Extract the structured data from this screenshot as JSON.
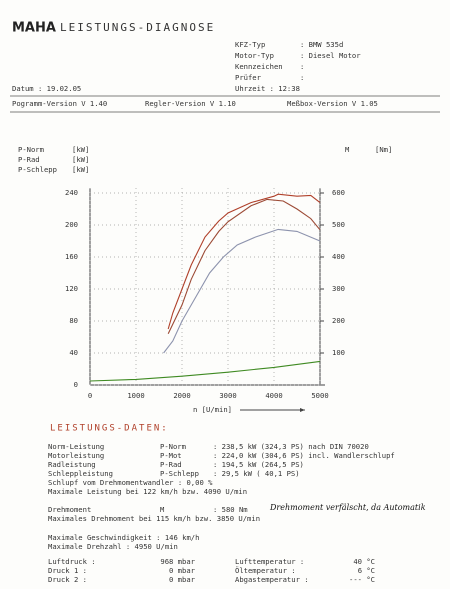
{
  "header": {
    "logo": "MAHA",
    "title": "LEISTUNGS-DIAGNOSE"
  },
  "vehicle": [
    {
      "label": "KFZ-Typ",
      "value": ": BMW 535d"
    },
    {
      "label": "Motor-Typ",
      "value": ": Diesel Motor"
    },
    {
      "label": "Kennzeichen",
      "value": ":"
    },
    {
      "label": "Prüfer",
      "value": ":"
    }
  ],
  "date": "Datum  : 19.02.05",
  "time": "Uhrzeit      : 12:38",
  "versions": [
    "Pogramm-Version V 1.40",
    "Regler-Version V 1.10",
    "Meßbox-Version V 1.05"
  ],
  "chart_data": {
    "type": "line",
    "x_label": "n [U/min]",
    "xlim": [
      0,
      5000
    ],
    "xticks": [
      0,
      1000,
      2000,
      3000,
      4000,
      5000
    ],
    "ylim": [
      0,
      240
    ],
    "yticks": [
      0,
      40,
      80,
      120,
      160,
      200,
      240
    ],
    "y2lim": [
      0,
      600
    ],
    "y2ticks": [
      100,
      200,
      300,
      400,
      500,
      600
    ],
    "grid": true,
    "series": [
      {
        "name": "P-Norm",
        "unit": "[kW]",
        "color": "#b0402a",
        "x": [
          1700,
          1800,
          2000,
          2200,
          2500,
          2800,
          3000,
          3500,
          4000,
          4090,
          4500,
          4800,
          5000
        ],
        "values": [
          70,
          90,
          120,
          150,
          185,
          205,
          215,
          228,
          236,
          238.5,
          236,
          237,
          228
        ]
      },
      {
        "name": "P-Rad",
        "unit": "[kW]",
        "color": "#8d93ad",
        "x": [
          1600,
          1800,
          2000,
          2300,
          2600,
          2900,
          3200,
          3600,
          4090,
          4500,
          5000
        ],
        "values": [
          40,
          55,
          80,
          110,
          140,
          160,
          175,
          185,
          194.5,
          192,
          180
        ]
      },
      {
        "name": "P-Schlepp",
        "unit": "[kW]",
        "color": "#3f8a22",
        "x": [
          0,
          1000,
          2000,
          3000,
          4000,
          5000
        ],
        "values": [
          5,
          7,
          11,
          16,
          22,
          29.5
        ]
      },
      {
        "name": "M",
        "unit": "[Nm]",
        "color": "#9c4a35",
        "axis": "y2",
        "x": [
          1700,
          2000,
          2200,
          2500,
          2800,
          3000,
          3500,
          3850,
          4200,
          4500,
          4800,
          5000
        ],
        "values": [
          160,
          250,
          330,
          420,
          480,
          510,
          560,
          580,
          575,
          550,
          520,
          485
        ]
      }
    ]
  },
  "results_title": "LEISTUNGS-DATEN:",
  "power_rows": [
    [
      "Norm-Leistung",
      "P-Norm",
      ": 238,5 kW (324,3 PS) nach DIN 70020"
    ],
    [
      "Motorleistung",
      "P-Mot",
      ": 224,0 kW (304,6 PS) incl. Wandlerschlupf"
    ],
    [
      "Radleistung",
      "P-Rad",
      ": 194,5 kW (264,5 PS)"
    ],
    [
      "Schleppleistung",
      "P-Schlepp",
      ": 29,5 kW ( 40,1 PS)"
    ]
  ],
  "slip": "Schlupf vom Drehmomentwandler :   0,00 %",
  "max_power": "Maximale Leistung bei 122 km/h bzw.  4090 U/min",
  "torque_row": [
    "Drehmoment",
    "M",
    ": 580 Nm"
  ],
  "handwritten": "Drehmoment verfälscht, da Automatik",
  "max_torque": "Maximales Drehmoment bei 115 km/h bzw.  3850 U/min",
  "max_speed": "Maximale Geschwindigkeit   :   146 km/h",
  "max_rpm": "Maximale Drehzahl           :  4950 U/min",
  "env": [
    [
      "Luftdruck    :",
      "968 mbar",
      "Lufttemperatur  :",
      "40 °C"
    ],
    [
      "Druck 1      :",
      "0 mbar",
      "Öltemperatur    :",
      "6 °C"
    ],
    [
      "Druck 2      :",
      "0 mbar",
      "Abgastemperatur :",
      "--- °C"
    ]
  ]
}
